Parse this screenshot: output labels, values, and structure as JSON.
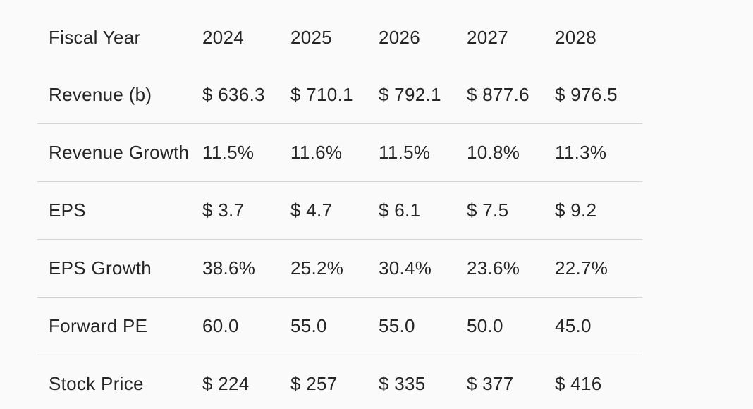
{
  "table": {
    "header": {
      "label": "Fiscal Year",
      "years": [
        "2024",
        "2025",
        "2026",
        "2027",
        "2028"
      ]
    },
    "rows": [
      {
        "label": "Revenue (b)",
        "values": [
          "$ 636.3",
          "$ 710.1",
          "$ 792.1",
          "$ 877.6",
          "$ 976.5"
        ]
      },
      {
        "label": "Revenue Growth",
        "values": [
          "11.5%",
          "11.6%",
          "11.5%",
          "10.8%",
          "11.3%"
        ]
      },
      {
        "label": "EPS",
        "values": [
          "$ 3.7",
          "$ 4.7",
          "$ 6.1",
          "$ 7.5",
          "$ 9.2"
        ]
      },
      {
        "label": "EPS Growth",
        "values": [
          "38.6%",
          "25.2%",
          "30.4%",
          "23.6%",
          "22.7%"
        ]
      },
      {
        "label": "Forward PE",
        "values": [
          "60.0",
          "55.0",
          "55.0",
          "50.0",
          "45.0"
        ]
      },
      {
        "label": "Stock Price",
        "values": [
          "$ 224",
          "$ 257",
          "$ 335",
          "$ 377",
          "$ 416"
        ]
      }
    ]
  }
}
